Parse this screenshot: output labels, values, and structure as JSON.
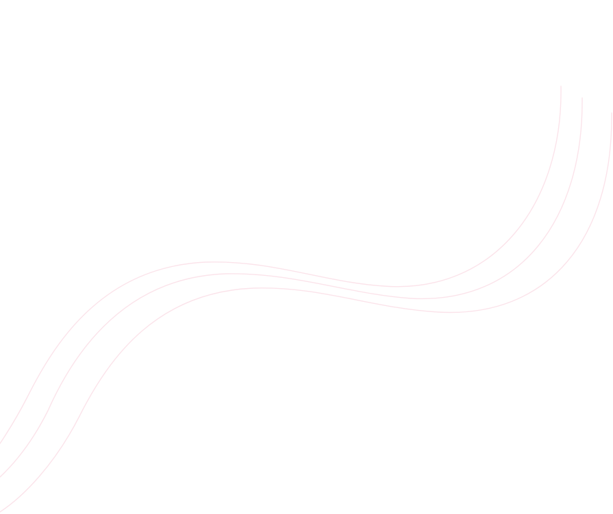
{
  "background": {
    "color": "#ffffff",
    "decoration": {
      "icon": "wavy-lines-decoration",
      "line_color": "#fbe3ea",
      "line_count": 3
    }
  }
}
